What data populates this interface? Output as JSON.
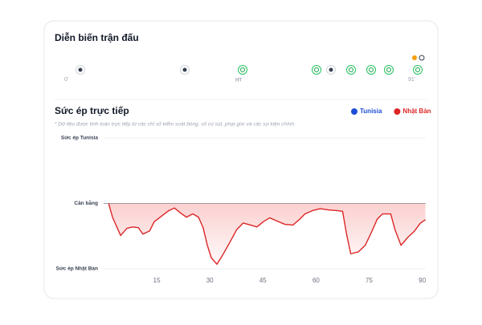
{
  "timeline": {
    "title": "Diễn biến trận đấu",
    "labels": [
      "0'",
      "HT",
      "91'"
    ]
  },
  "chart_data": {
    "type": "line",
    "title": "Sức ép trực tiếp",
    "subtitle": "* Dữ liệu được tính toán trực tiếp từ các chỉ số kiểm soát bóng, số cú sút, phạt góc và các sự kiện chính.",
    "legend": [
      {
        "name": "Tunisia",
        "color": "#1d4ed8"
      },
      {
        "name": "Nhật Bản",
        "color": "#dc2626"
      }
    ],
    "color": "#dc2626",
    "x": [
      1.4,
      2.5,
      4.8,
      6.6,
      8.2,
      9.8,
      11.1,
      13,
      14.3,
      16,
      18.4,
      20,
      21.8,
      23.4,
      25.2,
      26.8,
      28.1,
      29.3,
      30.4,
      32,
      33.5,
      35.4,
      37.6,
      39.4,
      41.5,
      43.3,
      45.1,
      46.9,
      49,
      51.2,
      53.5,
      55,
      56.9,
      59,
      61.2,
      63.7,
      65.9,
      67.5,
      68.6,
      69.8,
      72,
      73.9,
      75.5,
      77.3,
      78.8,
      81.1,
      82.3,
      84,
      85.9,
      87.7,
      89.5,
      90.9
    ],
    "values": [
      0,
      -21,
      -49,
      -38,
      -36,
      -37,
      -47,
      -42,
      -28,
      -21,
      -11,
      -7,
      -15,
      -21,
      -16,
      -21,
      -37,
      -64,
      -83,
      -93,
      -80,
      -62,
      -40,
      -30,
      -33,
      -36,
      -28,
      -22,
      -27,
      -32,
      -33,
      -26,
      -16,
      -11,
      -8,
      -10,
      -11,
      -12,
      -46,
      -77,
      -74,
      -64,
      -46,
      -24,
      -16,
      -16,
      -40,
      -64,
      -52,
      -43,
      -30,
      -25
    ],
    "xlim": [
      0,
      91
    ],
    "xticks": [
      15,
      30,
      45,
      60,
      75,
      90
    ],
    "ylim": [
      -100,
      100
    ],
    "yticks": [
      {
        "value": 100,
        "label": "Sức ép Tunisia"
      },
      {
        "value": 0,
        "label": "Cân bằng"
      },
      {
        "value": -100,
        "label": "Sức ép Nhật Bản"
      }
    ],
    "grid": true
  }
}
